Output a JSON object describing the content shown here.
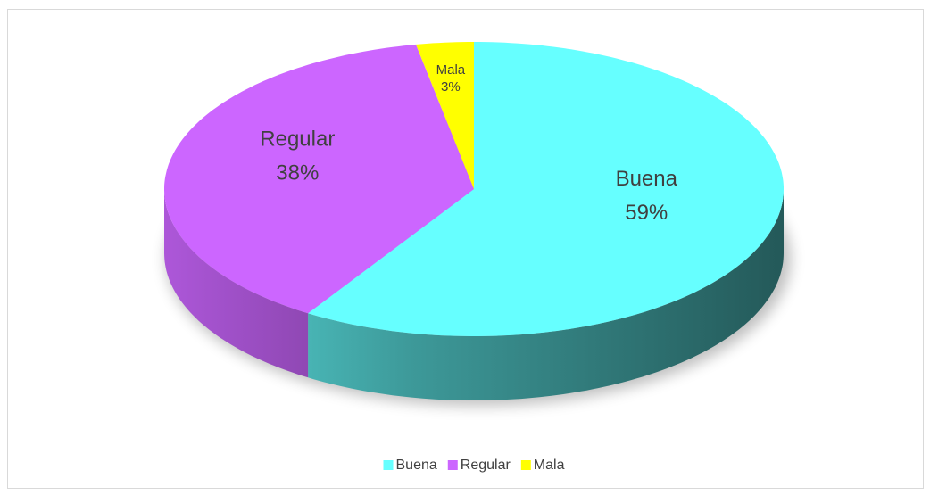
{
  "chart_data": {
    "type": "pie",
    "categories": [
      "Buena",
      "Regular",
      "Mala"
    ],
    "values": [
      59,
      38,
      3
    ],
    "value_labels": [
      "59%",
      "38%",
      "3%"
    ],
    "colors": [
      "#66ffff",
      "#cc66ff",
      "#ffff00"
    ],
    "legend": "bottom"
  }
}
